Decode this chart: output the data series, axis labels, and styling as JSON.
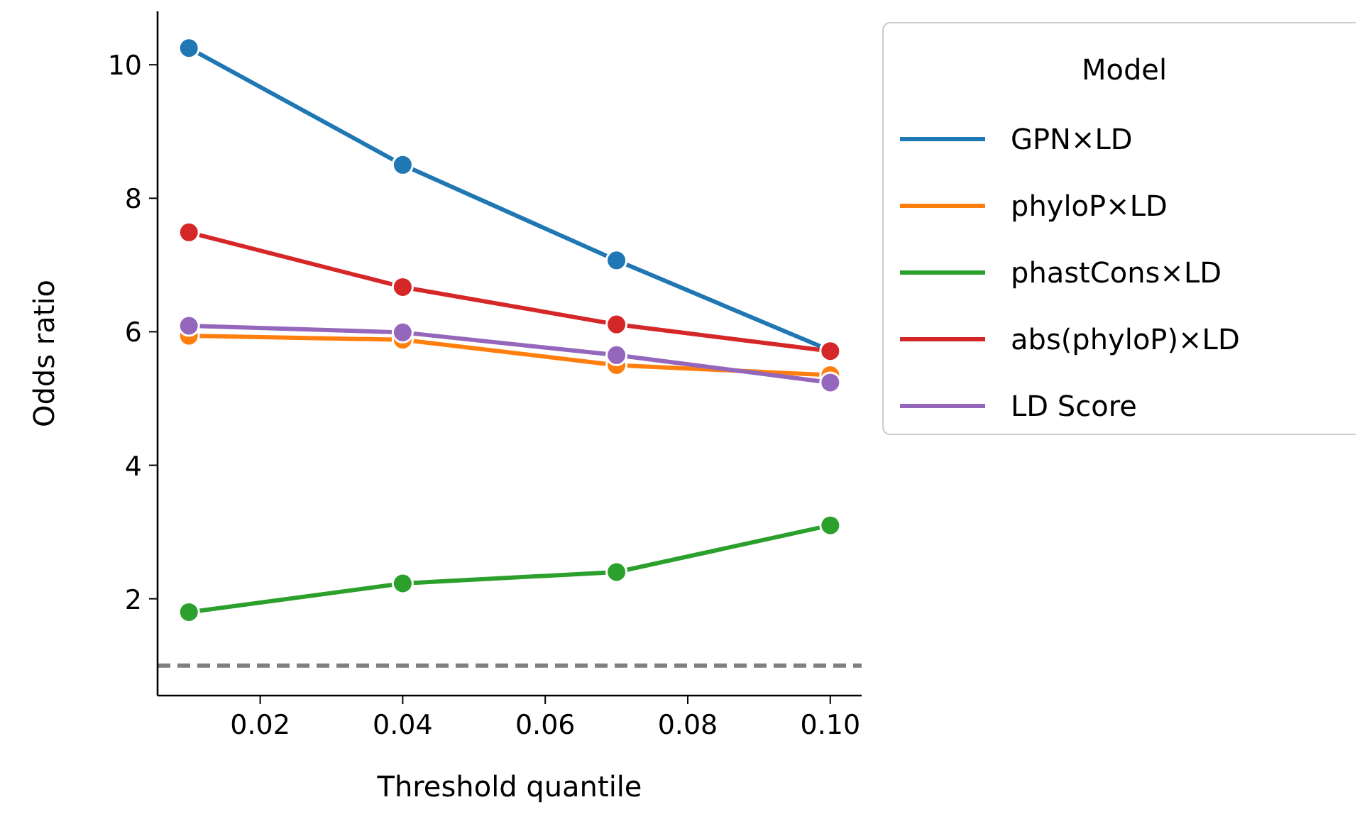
{
  "chart_data": {
    "type": "line",
    "xlabel": "Threshold quantile",
    "ylabel": "Odds ratio",
    "legend_title": "Model",
    "x": [
      0.01,
      0.04,
      0.07,
      0.1
    ],
    "series": [
      {
        "name": "GPN×LD",
        "color": "#1f77b4",
        "values": [
          10.25,
          8.5,
          7.07,
          5.72
        ]
      },
      {
        "name": "phyloP×LD",
        "color": "#ff7f0e",
        "values": [
          5.94,
          5.88,
          5.5,
          5.35
        ]
      },
      {
        "name": "phastCons×LD",
        "color": "#2ca02c",
        "values": [
          1.8,
          2.23,
          2.4,
          3.1
        ]
      },
      {
        "name": "abs(phyloP)×LD",
        "color": "#d62728",
        "values": [
          7.49,
          6.67,
          6.11,
          5.71
        ]
      },
      {
        "name": "LD Score",
        "color": "#9467bd",
        "values": [
          6.09,
          5.99,
          5.65,
          5.24
        ]
      }
    ],
    "xlim": [
      0.0056,
      0.1044
    ],
    "xticks": [
      {
        "value": 0.02,
        "label": "0.02"
      },
      {
        "value": 0.04,
        "label": "0.04"
      },
      {
        "value": 0.06,
        "label": "0.06"
      },
      {
        "value": 0.08,
        "label": "0.08"
      },
      {
        "value": 0.1,
        "label": "0.10"
      }
    ],
    "ylim": [
      0.55,
      10.8
    ],
    "yticks": [
      2,
      4,
      6,
      8,
      10
    ],
    "ref_lines": [
      {
        "axis": "y",
        "value": 1,
        "color": "#808080",
        "line_style": "dashed"
      }
    ],
    "marker": "circle",
    "line_style": "solid",
    "legend": "top right",
    "grid": false
  }
}
